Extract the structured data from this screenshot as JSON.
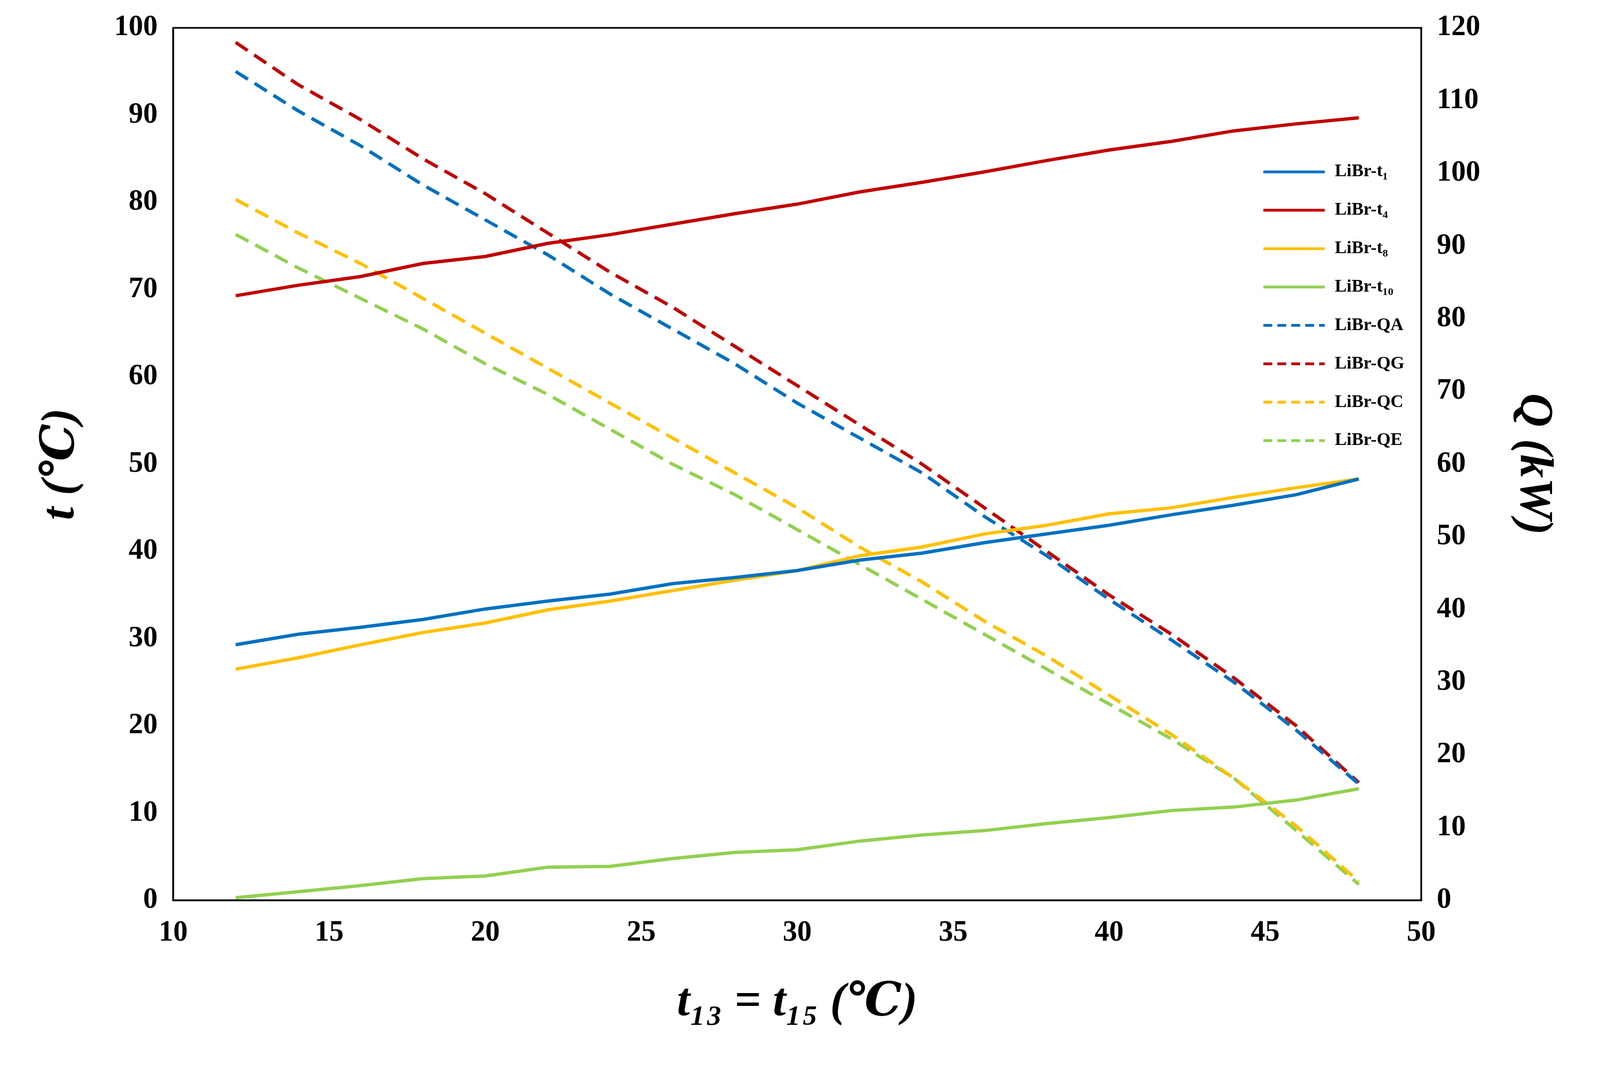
{
  "chart_data": {
    "type": "line",
    "x_label": "t₁₃ = t₁₅ (℃)",
    "y_label": "t (℃)",
    "y2_label": "Q (kW)",
    "x": [
      12,
      14,
      16,
      18,
      20,
      22,
      24,
      26,
      28,
      30,
      32,
      34,
      36,
      38,
      40,
      42,
      44,
      46,
      48
    ],
    "xlim": [
      10,
      50
    ],
    "xticks": [
      10,
      15,
      20,
      25,
      30,
      35,
      40,
      45,
      50
    ],
    "ylim": [
      0,
      100
    ],
    "yticks": [
      0,
      10,
      20,
      30,
      40,
      50,
      60,
      70,
      80,
      90,
      100
    ],
    "y2lim": [
      0,
      120
    ],
    "y2ticks": [
      0,
      10,
      20,
      30,
      40,
      50,
      60,
      70,
      80,
      90,
      100,
      110,
      120
    ],
    "grid": false,
    "legend": "upper right",
    "series": [
      {
        "name": "LiBr-t₁",
        "color": "#0070C0",
        "line_style": "solid",
        "axis": "y",
        "values": [
          29.3,
          30.5,
          31.3,
          32.2,
          33.4,
          34.3,
          35.1,
          36.3,
          37.0,
          37.8,
          39.0,
          39.8,
          41.0,
          42.0,
          43.0,
          44.2,
          45.3,
          46.5,
          48.3
        ]
      },
      {
        "name": "LiBr-t₄",
        "color": "#C00000",
        "line_style": "solid",
        "axis": "y",
        "values": [
          69.3,
          70.5,
          71.5,
          73.0,
          73.8,
          75.3,
          76.3,
          77.5,
          78.7,
          79.8,
          81.2,
          82.3,
          83.5,
          84.8,
          86.0,
          87.0,
          88.2,
          89.0,
          89.7
        ]
      },
      {
        "name": "LiBr-t₈",
        "color": "#FFC000",
        "line_style": "solid",
        "axis": "y",
        "values": [
          26.5,
          27.8,
          29.3,
          30.7,
          31.8,
          33.3,
          34.3,
          35.5,
          36.7,
          37.8,
          39.5,
          40.5,
          42.0,
          43.0,
          44.3,
          45.0,
          46.2,
          47.3,
          48.3
        ]
      },
      {
        "name": "LiBr-t₁₀",
        "color": "#92D050",
        "line_style": "solid",
        "axis": "y",
        "values": [
          0.3,
          1.0,
          1.7,
          2.5,
          2.8,
          3.8,
          3.9,
          4.8,
          5.5,
          5.8,
          6.8,
          7.5,
          8.0,
          8.8,
          9.5,
          10.3,
          10.7,
          11.5,
          12.8
        ]
      },
      {
        "name": "LiBr-QA",
        "color": "#0070C0",
        "line_style": "dashed",
        "axis": "y2",
        "values": [
          114.0,
          108.6,
          103.8,
          98.4,
          93.6,
          88.8,
          83.4,
          78.6,
          73.8,
          68.4,
          63.6,
          58.8,
          52.8,
          47.4,
          41.4,
          35.8,
          30.0,
          23.4,
          16.0
        ]
      },
      {
        "name": "LiBr-QG",
        "color": "#C00000",
        "line_style": "dashed",
        "axis": "y2",
        "values": [
          118.0,
          112.2,
          107.4,
          102.0,
          97.2,
          91.8,
          86.4,
          81.6,
          76.2,
          70.8,
          65.4,
          60.0,
          54.0,
          48.0,
          42.0,
          36.6,
          30.6,
          24.0,
          16.2
        ]
      },
      {
        "name": "LiBr-QC",
        "color": "#FFC000",
        "line_style": "dashed",
        "axis": "y2",
        "values": [
          96.4,
          91.8,
          87.6,
          82.8,
          78.0,
          73.2,
          68.4,
          63.6,
          58.8,
          54.0,
          48.6,
          43.8,
          38.4,
          33.6,
          28.2,
          22.8,
          16.8,
          10.2,
          2.6
        ]
      },
      {
        "name": "LiBr-QE",
        "color": "#92D050",
        "line_style": "dashed",
        "axis": "y2",
        "values": [
          91.6,
          87.0,
          82.8,
          78.6,
          73.8,
          69.6,
          64.8,
          60.0,
          55.8,
          51.0,
          46.2,
          41.4,
          36.6,
          31.8,
          27.0,
          22.2,
          16.8,
          9.6,
          2.2
        ]
      }
    ]
  }
}
